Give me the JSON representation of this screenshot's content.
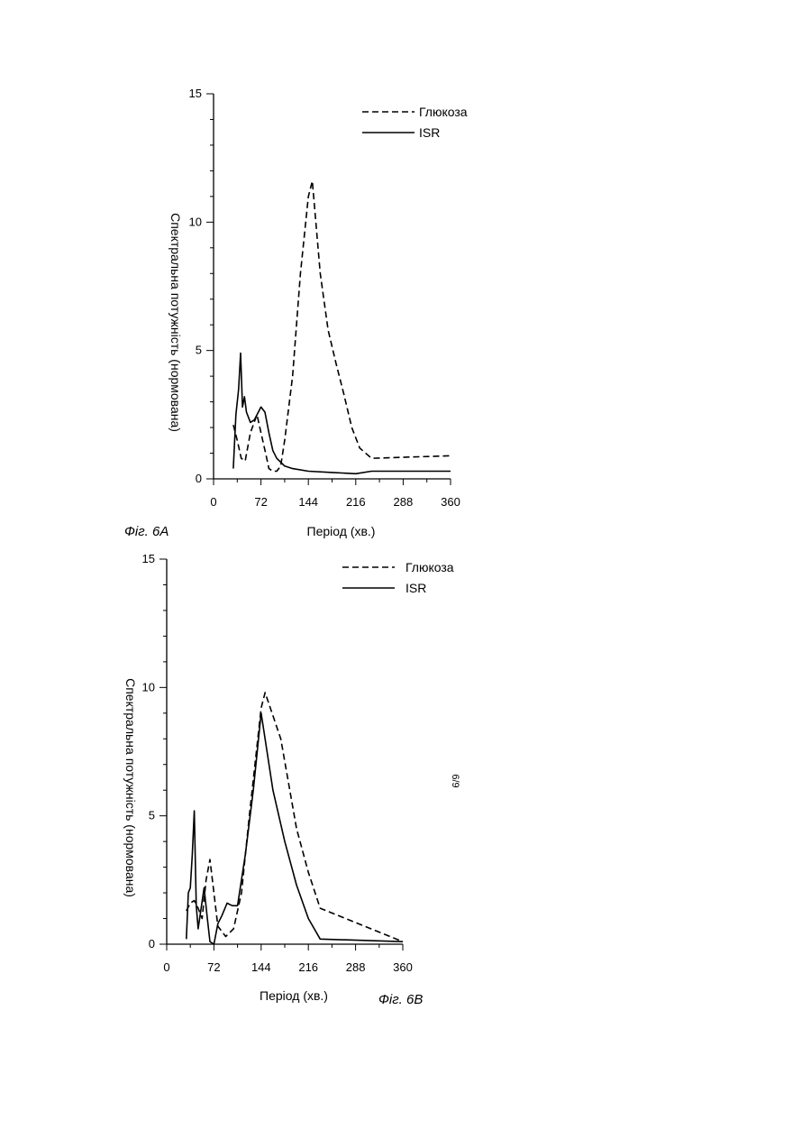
{
  "page_mark": "6/9",
  "chart_data": [
    {
      "type": "line",
      "caption": "Фіг. 6А",
      "xlabel": "Період (хв.)",
      "ylabel": "Спектральна потужність (нормована)",
      "xlim": [
        0,
        360
      ],
      "ylim": [
        0,
        15
      ],
      "x_ticks": [
        0,
        72,
        144,
        216,
        288,
        360
      ],
      "y_ticks": [
        0,
        5,
        10,
        15
      ],
      "legend_position": "top-right",
      "series": [
        {
          "name": "Глюкоза",
          "style": "dashed",
          "x": [
            30,
            36,
            42,
            48,
            56,
            66,
            72,
            80,
            84,
            90,
            96,
            102,
            108,
            120,
            132,
            144,
            150,
            162,
            174,
            186,
            198,
            210,
            222,
            240,
            360
          ],
          "y": [
            2.1,
            1.5,
            0.8,
            0.7,
            1.8,
            2.5,
            1.8,
            0.9,
            0.4,
            0.3,
            0.3,
            0.5,
            1.5,
            4.0,
            8.0,
            11.0,
            11.6,
            8.0,
            5.8,
            4.5,
            3.3,
            2.0,
            1.2,
            0.8,
            0.9
          ]
        },
        {
          "name": "ISR",
          "style": "solid",
          "x": [
            30,
            34,
            38,
            41,
            44,
            47,
            50,
            56,
            62,
            68,
            72,
            78,
            84,
            90,
            96,
            108,
            120,
            144,
            180,
            216,
            240,
            288,
            360
          ],
          "y": [
            0.4,
            2.5,
            3.5,
            4.9,
            2.8,
            3.2,
            2.6,
            2.2,
            2.3,
            2.6,
            2.8,
            2.6,
            1.8,
            1.1,
            0.8,
            0.5,
            0.4,
            0.3,
            0.25,
            0.2,
            0.3,
            0.3,
            0.3
          ]
        }
      ]
    },
    {
      "type": "line",
      "caption": "Фіг. 6В",
      "xlabel": "Період (хв.)",
      "ylabel": "Спектральна потужність (нормована)",
      "xlim": [
        0,
        360
      ],
      "ylim": [
        0,
        15
      ],
      "x_ticks": [
        0,
        72,
        144,
        216,
        288,
        360
      ],
      "y_ticks": [
        0,
        5,
        10,
        15
      ],
      "legend_position": "top-right",
      "series": [
        {
          "name": "Глюкоза",
          "style": "dashed",
          "x": [
            30,
            36,
            42,
            48,
            54,
            60,
            66,
            72,
            78,
            90,
            102,
            114,
            126,
            144,
            150,
            174,
            198,
            216,
            234,
            360
          ],
          "y": [
            1.3,
            1.6,
            1.7,
            1.4,
            1.0,
            2.5,
            3.3,
            2.0,
            0.7,
            0.3,
            0.6,
            2.0,
            5.0,
            9.2,
            9.8,
            8.0,
            4.5,
            2.8,
            1.4,
            0.1
          ]
        },
        {
          "name": "ISR",
          "style": "solid",
          "x": [
            30,
            33,
            36,
            39,
            42,
            45,
            48,
            52,
            57,
            62,
            66,
            72,
            78,
            84,
            92,
            100,
            108,
            120,
            132,
            144,
            162,
            180,
            198,
            216,
            234,
            360
          ],
          "y": [
            0.2,
            2.0,
            2.2,
            3.5,
            5.2,
            1.5,
            0.6,
            1.3,
            2.2,
            1.0,
            0.1,
            0.0,
            0.8,
            1.1,
            1.6,
            1.5,
            1.5,
            3.5,
            6.0,
            9.0,
            6.0,
            4.0,
            2.3,
            1.0,
            0.2,
            0.1
          ]
        }
      ]
    }
  ]
}
